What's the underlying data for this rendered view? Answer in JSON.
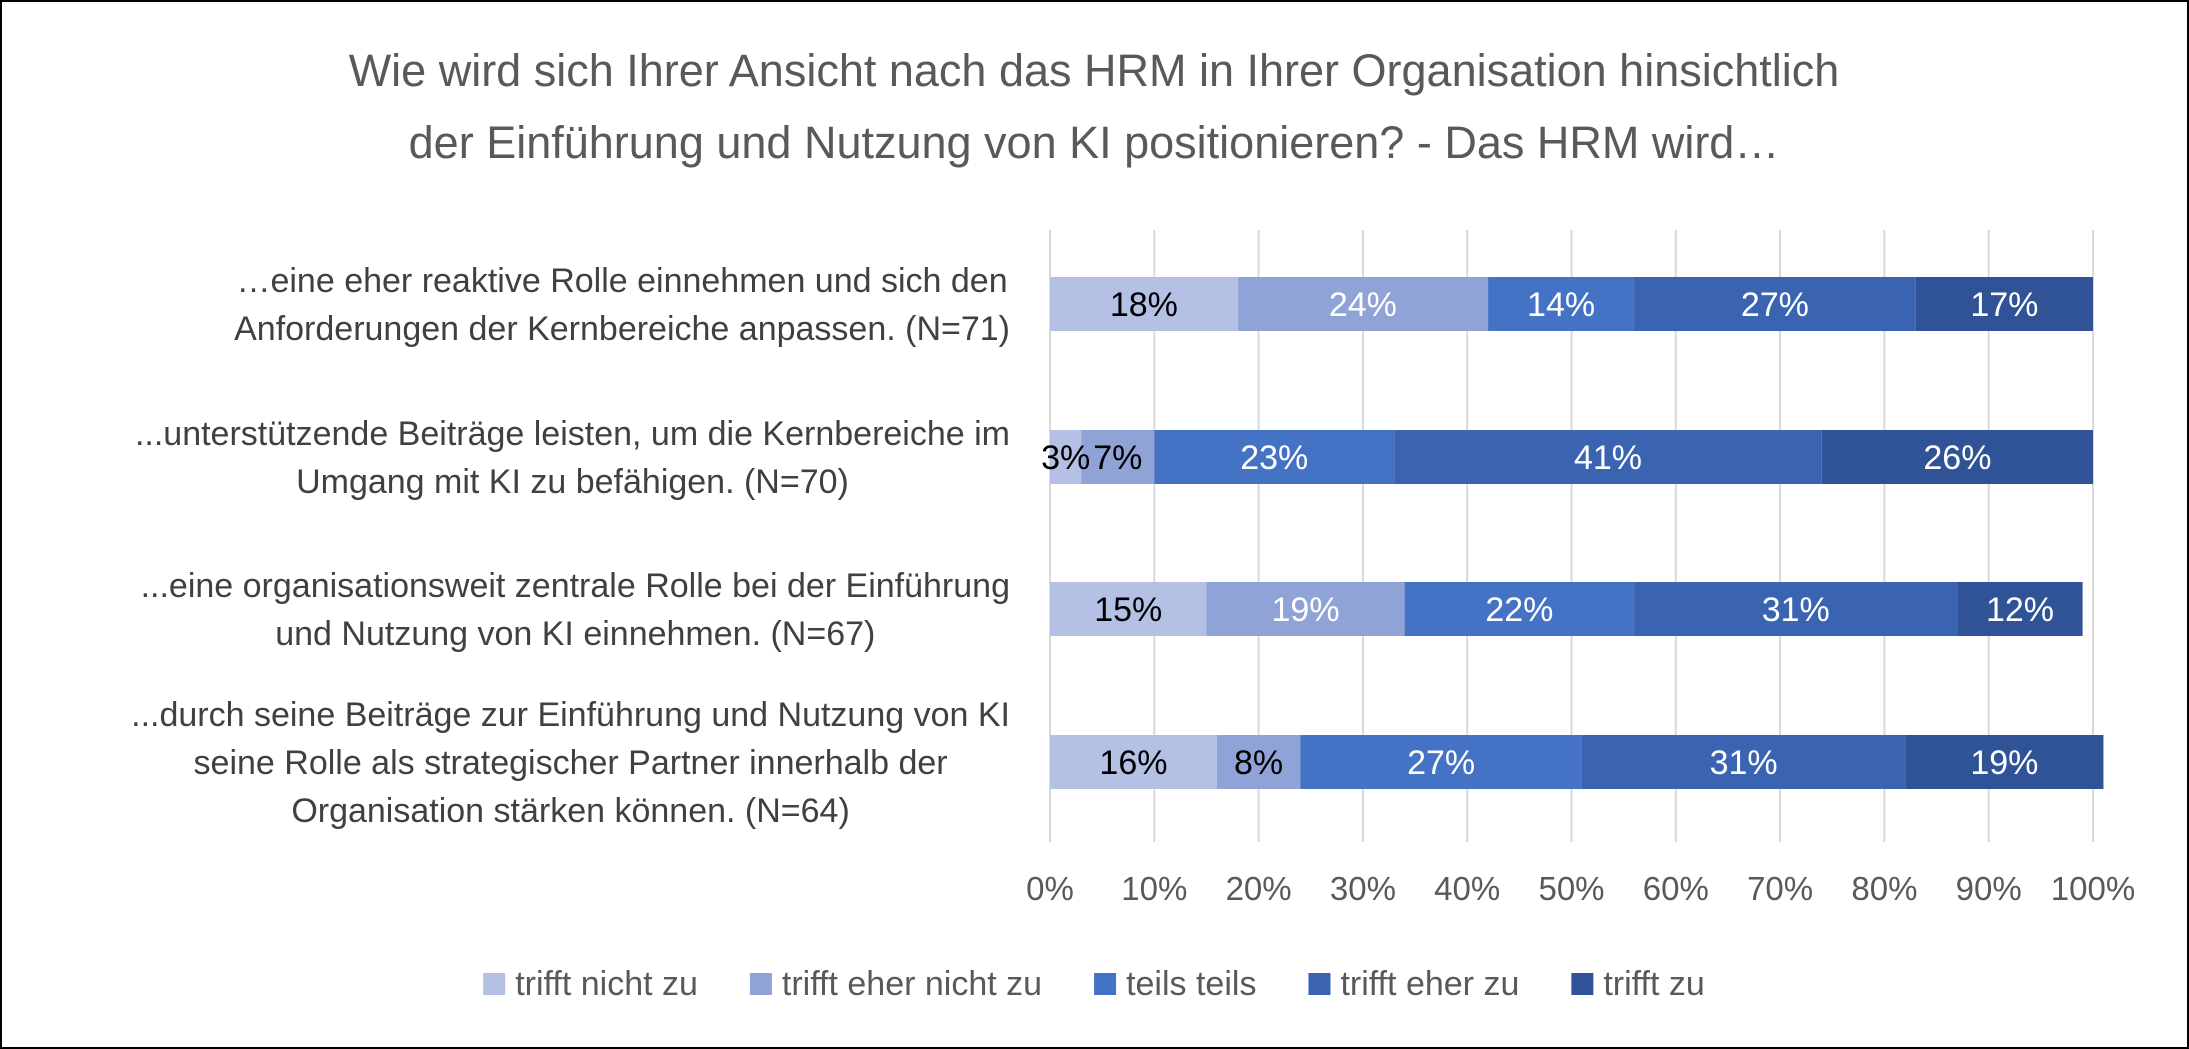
{
  "chart_data": {
    "type": "bar",
    "orientation": "horizontal",
    "stacked": "percent",
    "title": [
      "Wie wird sich Ihrer Ansicht nach das HRM in Ihrer Organisation hinsichtlich",
      "der Einführung und Nutzung von KI positionieren? - Das HRM wird…"
    ],
    "categories": [
      [
        "…eine eher reaktive Rolle einnehmen und sich den",
        "Anforderungen der Kernbereiche anpassen. (N=71)"
      ],
      [
        "...unterstützende Beiträge leisten, um die Kernbereiche im",
        "Umgang mit KI zu befähigen. (N=70)"
      ],
      [
        "...eine organisationsweit zentrale Rolle bei der Einführung",
        "und Nutzung von KI einnehmen. (N=67)"
      ],
      [
        "...durch seine Beiträge zur Einführung und Nutzung von KI",
        "seine Rolle als strategischer Partner innerhalb der",
        "Organisation stärken können. (N=64)"
      ]
    ],
    "series": [
      {
        "name": "trifft nicht zu",
        "color": "#b4c0e4",
        "label_color": "#000000",
        "values": [
          18,
          3,
          15,
          16
        ]
      },
      {
        "name": "trifft eher nicht zu",
        "color": "#8fa3d6",
        "label_color": "#ffffff",
        "values": [
          24,
          7,
          19,
          8
        ]
      },
      {
        "name": "teils teils",
        "color": "#4472c4",
        "label_color": "#ffffff",
        "values": [
          14,
          23,
          22,
          27
        ]
      },
      {
        "name": "trifft eher zu",
        "color": "#3a64b2",
        "label_color": "#ffffff",
        "values": [
          27,
          41,
          31,
          31
        ]
      },
      {
        "name": "trifft zu",
        "color": "#2f5396",
        "label_color": "#ffffff",
        "values": [
          17,
          26,
          12,
          19
        ]
      }
    ],
    "first_label_color_override": "#000000",
    "xlim": [
      0,
      100
    ],
    "xticks": [
      "0%",
      "10%",
      "20%",
      "30%",
      "40%",
      "50%",
      "60%",
      "70%",
      "80%",
      "90%",
      "100%"
    ],
    "grid": true,
    "legend_position": "bottom"
  }
}
